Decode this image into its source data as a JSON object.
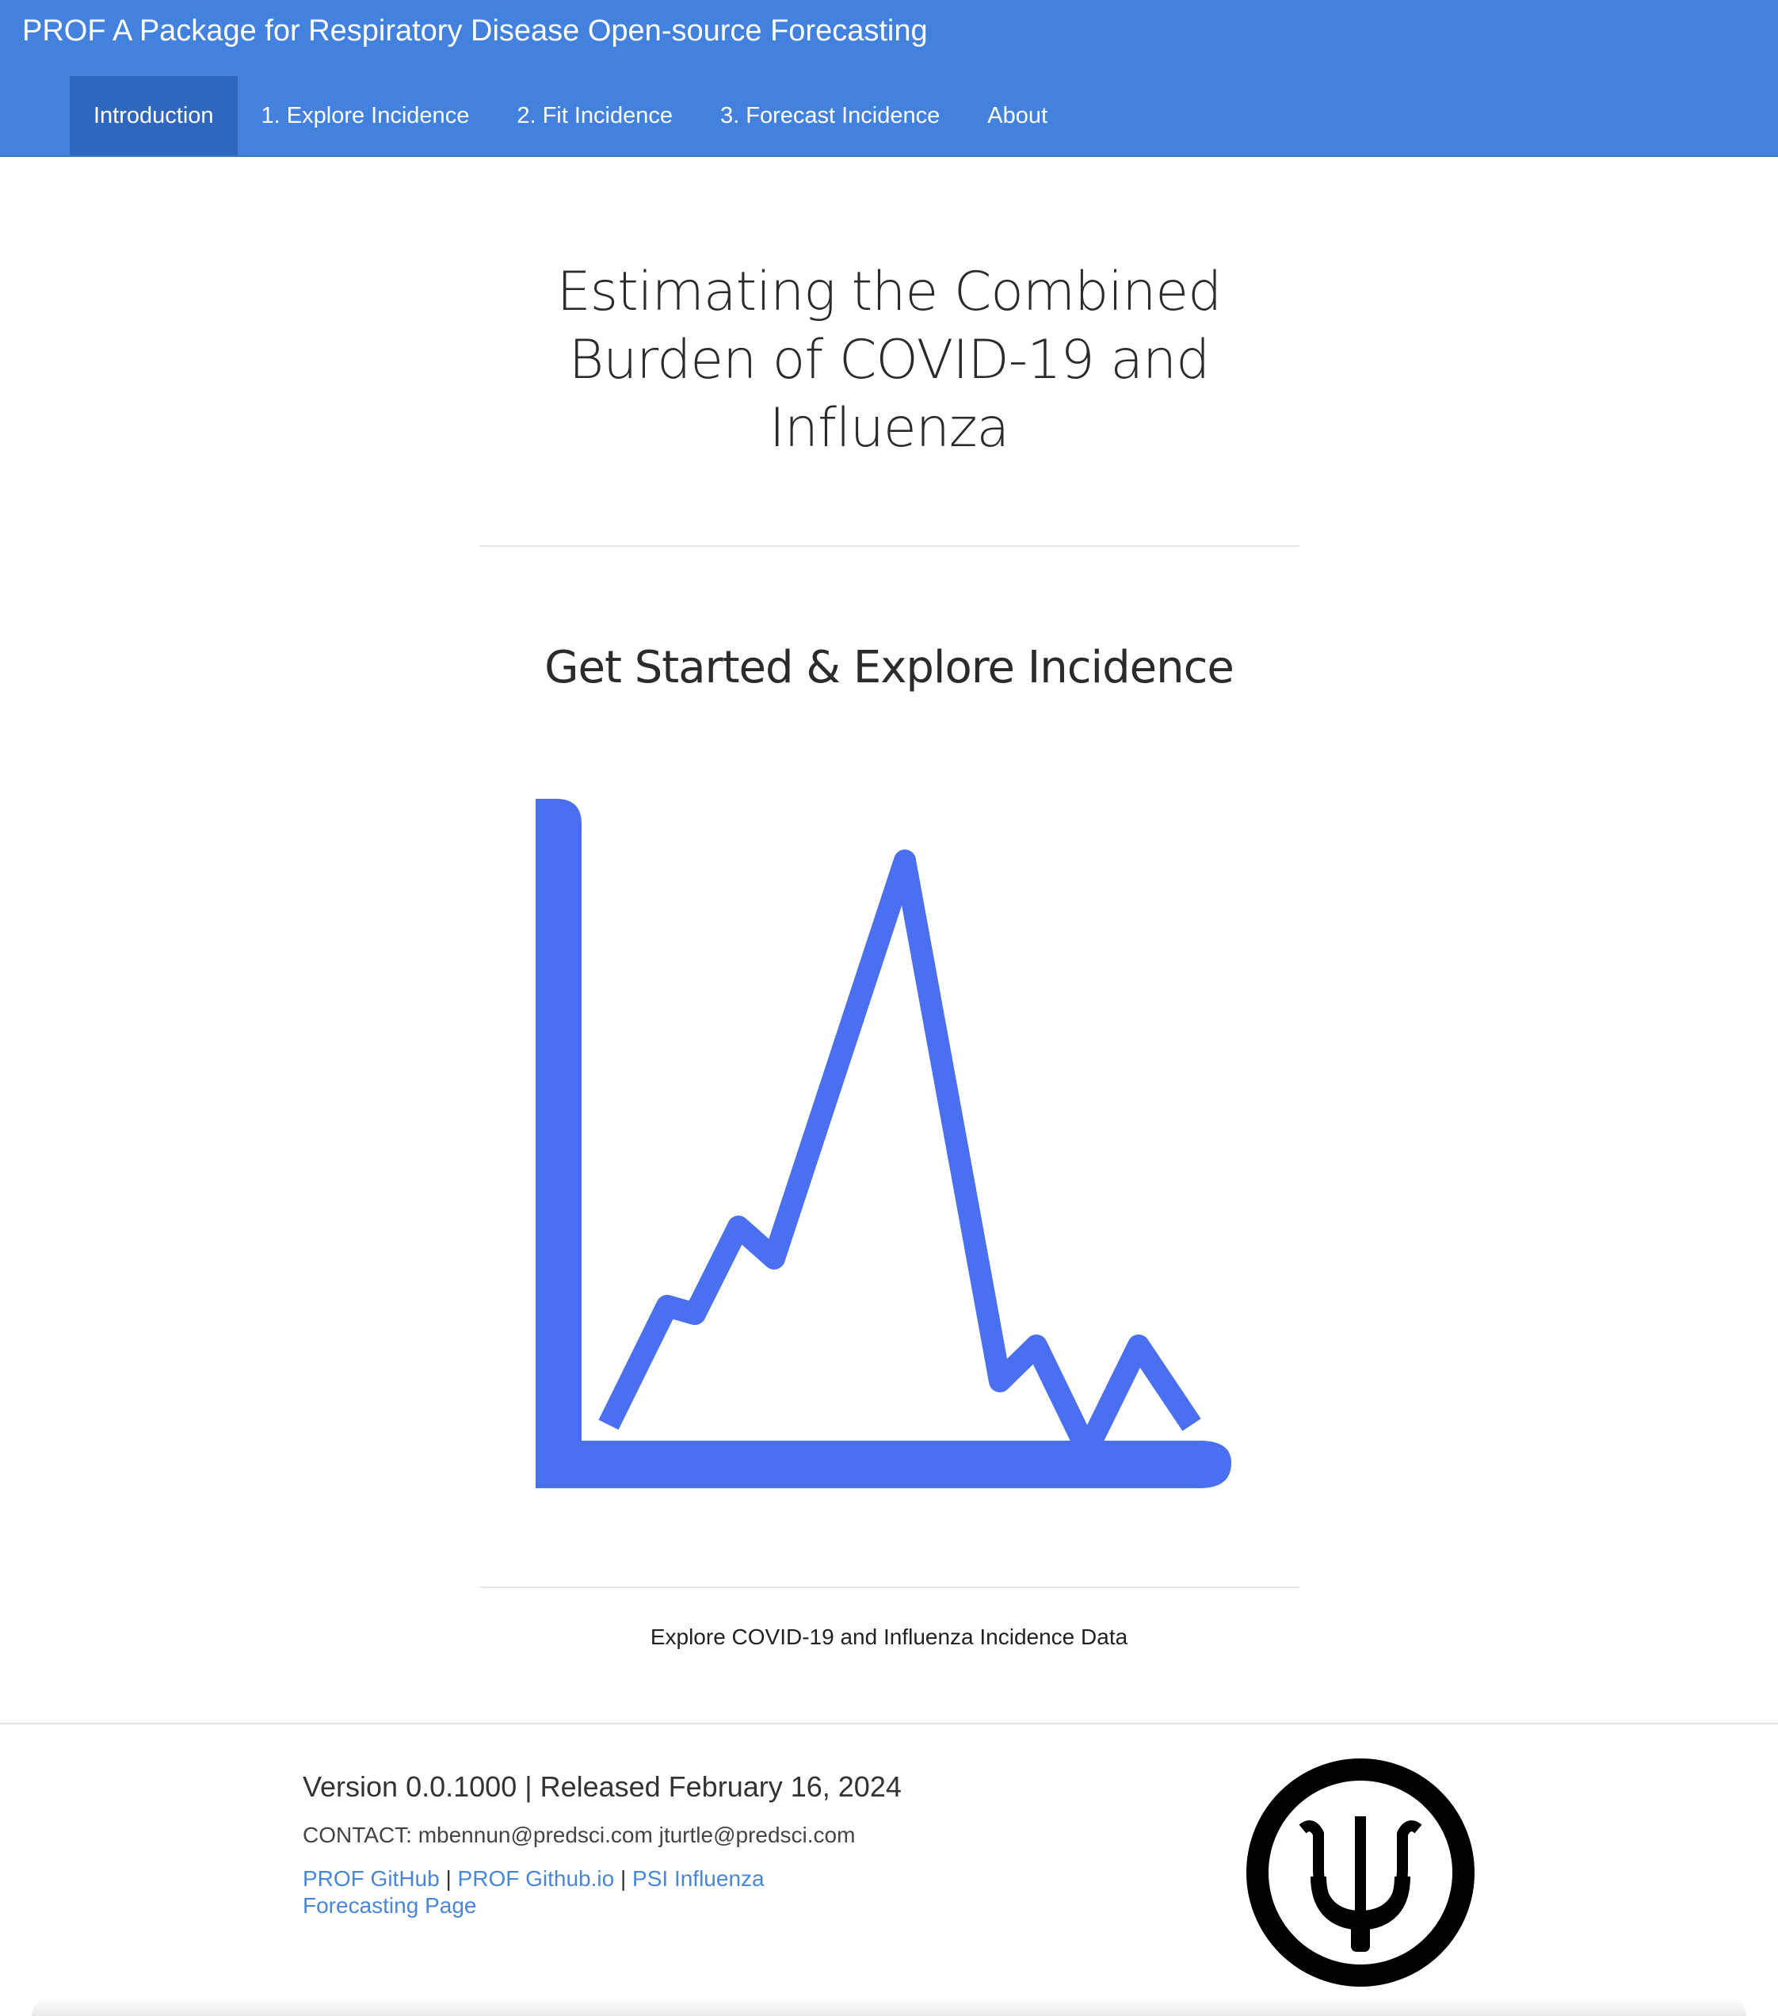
{
  "navbar": {
    "brand": "PROF A Package for Respiratory Disease Open-source Forecasting",
    "tabs": [
      {
        "label": "Introduction",
        "active": true
      },
      {
        "label": "1. Explore Incidence",
        "active": false
      },
      {
        "label": "2. Fit Incidence",
        "active": false
      },
      {
        "label": "3. Forecast Incidence",
        "active": false
      },
      {
        "label": "About",
        "active": false
      }
    ]
  },
  "main": {
    "title": "Estimating the Combined Burden of COVID-19 and Influenza",
    "subtitle": "Get Started & Explore Incidence",
    "chart_icon": "line-chart-icon",
    "explore_label": "Explore COVID-19 and Influenza Incidence Data"
  },
  "footer": {
    "version": "Version 0.0.1000 | Released February 16, 2024",
    "contact": "CONTACT: mbennun@predsci.com jturtle@predsci.com",
    "links": [
      {
        "label": "PROF GitHub"
      },
      {
        "label": "PROF Github.io"
      },
      {
        "label": "PSI Influenza Forecasting Page"
      }
    ],
    "separator": "|",
    "logo_icon": "psi-logo-icon"
  },
  "colors": {
    "navbar": "#4381de",
    "navbar_active": "#2f67bf",
    "chart_icon": "#4a6ff0",
    "link": "#4a86d8"
  }
}
